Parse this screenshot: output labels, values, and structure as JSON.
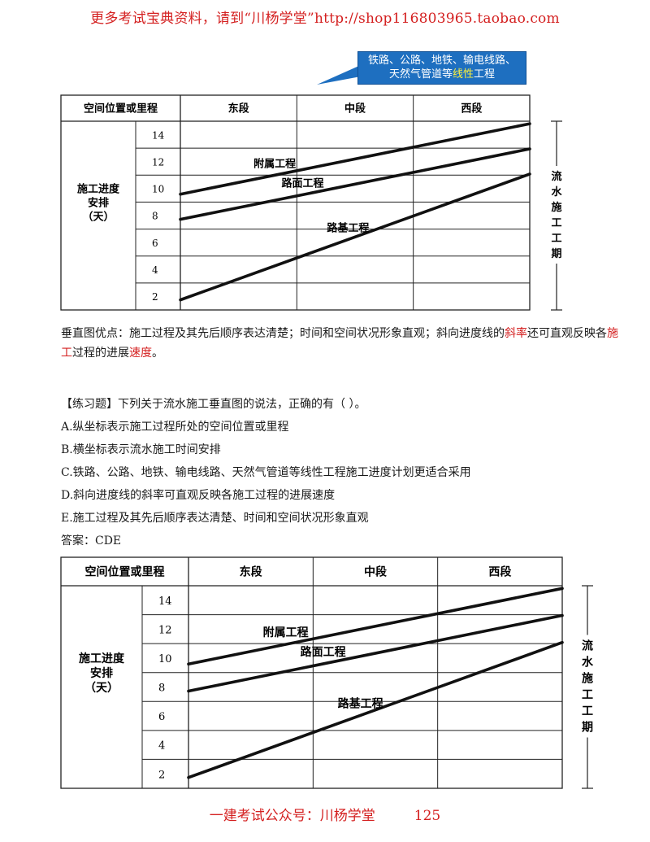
{
  "header": {
    "text": "更多考试宝典资料，请到“川杨学堂”http://shop116803965.taobao.com"
  },
  "callout": {
    "line1": "铁路、公路、地铁、输电线路、",
    "line2_a": "天然气管道等",
    "line2_hl": "线性",
    "line2_b": "工程"
  },
  "chart": {
    "corner_label": "空间位置或里程",
    "segments": [
      "东段",
      "中段",
      "西段"
    ],
    "row_label_lines": [
      "施工进度",
      "安排",
      "（天）"
    ],
    "y_ticks": [
      "14",
      "12",
      "10",
      "8",
      "6",
      "4",
      "2"
    ],
    "side_label_chars": [
      "流",
      "水",
      "施",
      "工",
      "工",
      "期"
    ],
    "lines": [
      {
        "name": "附属工程",
        "start_day": 9.2,
        "end_day": 14.8
      },
      {
        "name": "路面工程",
        "start_day": 7.2,
        "end_day": 12.8
      },
      {
        "name": "路基工程",
        "start_day": 0.8,
        "end_day": 10.8
      }
    ]
  },
  "advantages": {
    "p1": "垂直图优点：施工过程及其先后顺序表达清楚；时间和空间状况形象直观；斜向进度线的",
    "p2": "斜率",
    "p3": "还可直观反映各",
    "p4": "施工",
    "p5": "过程的进展",
    "p6": "速度",
    "p7": "。"
  },
  "question": {
    "stem": "【练习题】下列关于流水施工垂直图的说法，正确的有（    ）。",
    "options": [
      "A.纵坐标表示施工过程所处的空间位置或里程",
      "B.横坐标表示流水施工时间安排",
      "C.铁路、公路、地铁、输电线路、天然气管道等线性工程施工进度计划更适合采用",
      "D.斜向进度线的斜率可直观反映各施工过程的进展速度",
      "E.施工过程及其先后顺序表达清楚、时间和空间状况形象直观"
    ],
    "answer": "答案：CDE"
  },
  "footer": {
    "text": "一建考试公众号：川杨学堂",
    "page": "125"
  }
}
